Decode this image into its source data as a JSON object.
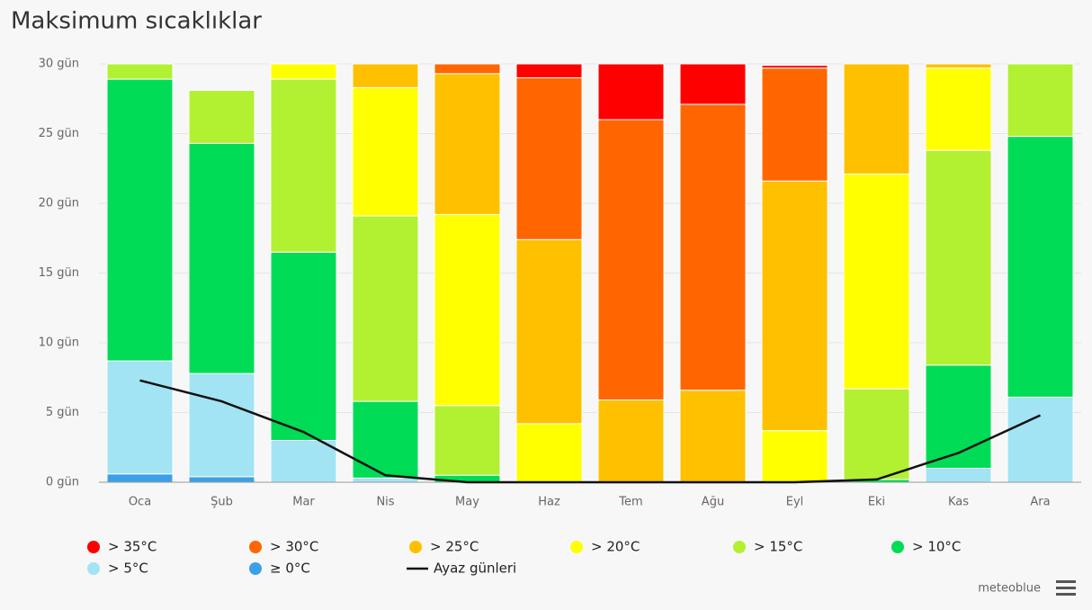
{
  "chart_data": {
    "type": "bar",
    "stacked": true,
    "title": "Maksimum sıcaklıklar",
    "categories": [
      "Oca",
      "Şub",
      "Mar",
      "Nis",
      "May",
      "Haz",
      "Tem",
      "Ağu",
      "Eyl",
      "Eki",
      "Kas",
      "Ara"
    ],
    "series": [
      {
        "name": "> 35°C",
        "color": "#ff0000",
        "values": [
          0,
          0,
          0,
          0,
          0,
          1.0,
          4.0,
          2.9,
          0.2,
          0,
          0,
          0
        ]
      },
      {
        "name": "> 30°C",
        "color": "#ff6600",
        "values": [
          0,
          0,
          0,
          0,
          0.7,
          11.6,
          20.1,
          20.5,
          8.1,
          0,
          0,
          0
        ]
      },
      {
        "name": "> 25°C",
        "color": "#ffc000",
        "values": [
          0,
          0,
          0,
          1.7,
          10.1,
          13.2,
          5.9,
          6.6,
          17.9,
          7.9,
          0.3,
          0
        ]
      },
      {
        "name": "> 20°C",
        "color": "#ffff00",
        "values": [
          0,
          0,
          1.1,
          9.2,
          13.7,
          4.2,
          0,
          0,
          3.7,
          15.4,
          5.9,
          0
        ]
      },
      {
        "name": "> 15°C",
        "color": "#b2f032",
        "values": [
          1.1,
          3.8,
          12.4,
          13.3,
          5.0,
          0,
          0,
          0,
          0,
          6.5,
          15.4,
          5.2
        ]
      },
      {
        "name": "> 10°C",
        "color": "#00dc55",
        "values": [
          20.2,
          16.5,
          13.5,
          5.5,
          0.5,
          0,
          0,
          0,
          0,
          0.2,
          7.4,
          18.7
        ]
      },
      {
        "name": "> 5°C",
        "color": "#a2e4f4",
        "values": [
          8.1,
          7.4,
          3.0,
          0.3,
          0,
          0,
          0,
          0,
          0,
          0,
          1.0,
          6.1
        ]
      },
      {
        "name": "≥ 0°C",
        "color": "#3ca0e8",
        "values": [
          0.6,
          0.4,
          0,
          0,
          0,
          0,
          0,
          0,
          0,
          0,
          0,
          0
        ]
      },
      {
        "name": "Ayaz günleri",
        "type": "line",
        "color": "#111111",
        "values": [
          7.3,
          5.8,
          3.6,
          0.5,
          0,
          0,
          0,
          0,
          0,
          0.2,
          2.1,
          4.8
        ]
      }
    ],
    "ylim": [
      0,
      30
    ],
    "yticks": [
      {
        "value": 0,
        "label": "0 gün"
      },
      {
        "value": 5,
        "label": "5 gün"
      },
      {
        "value": 10,
        "label": "10 gün"
      },
      {
        "value": 15,
        "label": "15 gün"
      },
      {
        "value": 20,
        "label": "20 gün"
      },
      {
        "value": 25,
        "label": "25 gün"
      },
      {
        "value": 30,
        "label": "30 gün"
      }
    ],
    "grid": true,
    "legend": "bottom",
    "credit": "meteoblue"
  }
}
